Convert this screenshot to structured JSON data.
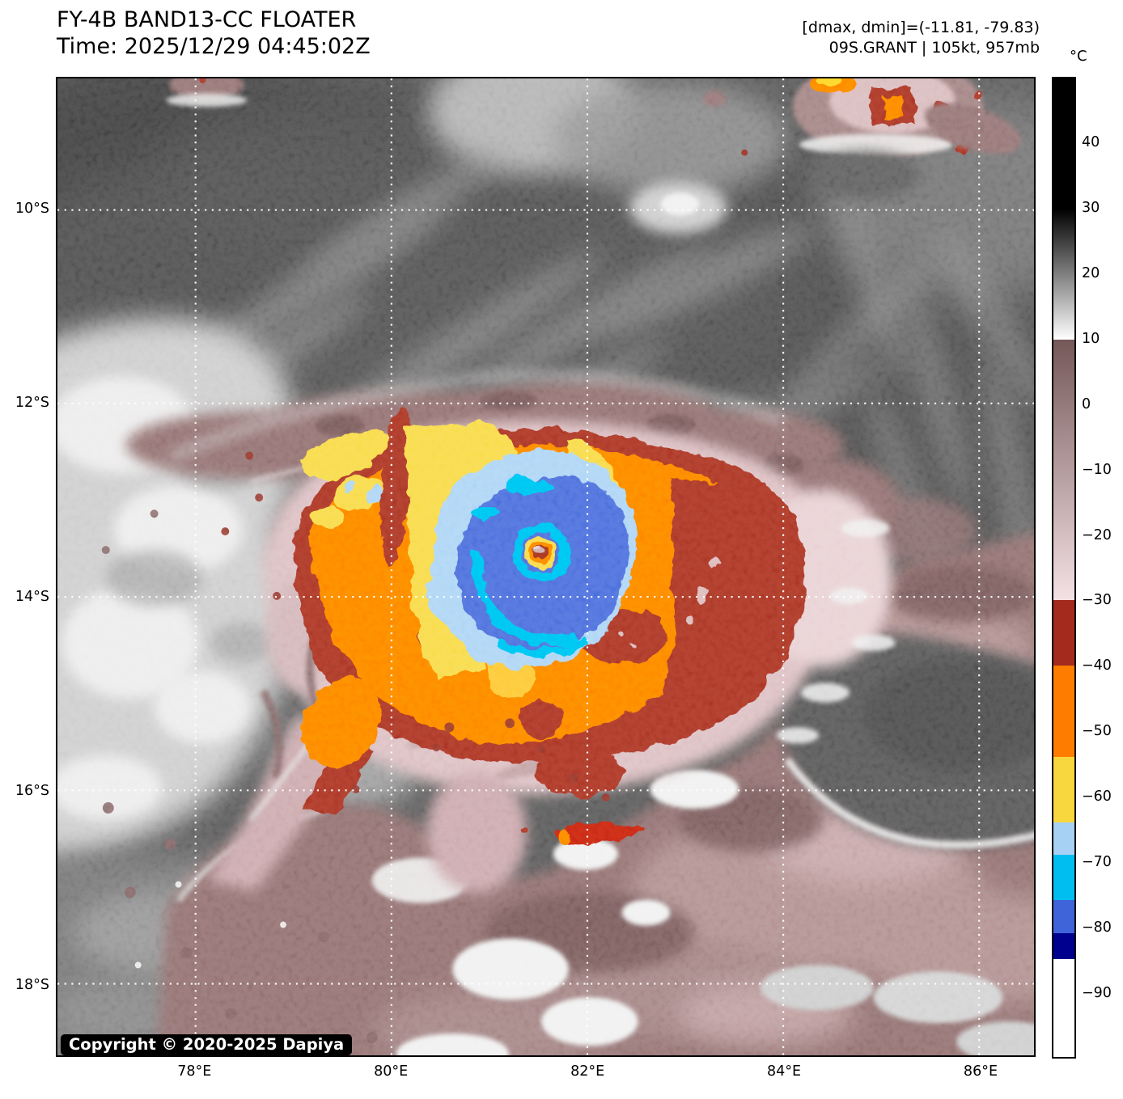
{
  "header": {
    "title_line1": "FY-4B BAND13-CC FLOATER",
    "title_line2": "Time: 2025/12/29 04:45:02Z",
    "dmax_dmin": "[dmax, dmin]=(-11.81, -79.83)",
    "storm_info": "09S.GRANT | 105kt, 957mb"
  },
  "map": {
    "copyright": "Copyright © 2020-2025 Dapiya",
    "lon_range": [
      76.59,
      86.56
    ],
    "lat_range": [
      8.64,
      18.74
    ],
    "x_ticks": [
      {
        "lon": 78,
        "label": "78°E"
      },
      {
        "lon": 80,
        "label": "80°E"
      },
      {
        "lon": 82,
        "label": "82°E"
      },
      {
        "lon": 84,
        "label": "84°E"
      },
      {
        "lon": 86,
        "label": "86°E"
      }
    ],
    "y_ticks": [
      {
        "lat": 10,
        "label": "10°S"
      },
      {
        "lat": 12,
        "label": "12°S"
      },
      {
        "lat": 14,
        "label": "14°S"
      },
      {
        "lat": 16,
        "label": "16°S"
      },
      {
        "lat": 18,
        "label": "18°S"
      }
    ],
    "grid_color": "#ffffff"
  },
  "colorbar": {
    "unit": "°C",
    "min": -100,
    "max": 50,
    "ticks": [
      {
        "value": 40,
        "label": "40"
      },
      {
        "value": 30,
        "label": "30"
      },
      {
        "value": 20,
        "label": "20"
      },
      {
        "value": 10,
        "label": "10"
      },
      {
        "value": 0,
        "label": "0"
      },
      {
        "value": -10,
        "label": "−10"
      },
      {
        "value": -20,
        "label": "−20"
      },
      {
        "value": -30,
        "label": "−30"
      },
      {
        "value": -40,
        "label": "−40"
      },
      {
        "value": -50,
        "label": "−50"
      },
      {
        "value": -60,
        "label": "−60"
      },
      {
        "value": -70,
        "label": "−70"
      },
      {
        "value": -80,
        "label": "−80"
      },
      {
        "value": -90,
        "label": "−90"
      }
    ],
    "segments": [
      {
        "from": 50,
        "to": 30,
        "color": "#000000"
      },
      {
        "from": 30,
        "to": 10,
        "gradient": [
          "#000000",
          "#ffffff"
        ]
      },
      {
        "from": 10,
        "to": -30,
        "gradient": [
          "#755858",
          "#f4e1e4"
        ]
      },
      {
        "from": -30,
        "to": -40,
        "color": "#a42a1e"
      },
      {
        "from": -40,
        "to": -54,
        "color": "#fe7d00"
      },
      {
        "from": -54,
        "to": -64,
        "color": "#f8d73e"
      },
      {
        "from": -64,
        "to": -69,
        "color": "#a6d1f4"
      },
      {
        "from": -69,
        "to": -76,
        "color": "#00bef0"
      },
      {
        "from": -76,
        "to": -81,
        "color": "#3f63d9"
      },
      {
        "from": -81,
        "to": -85,
        "color": "#00008f"
      },
      {
        "from": -85,
        "to": -100,
        "color": "#ffffff"
      }
    ]
  },
  "palette": {
    "bg0": "#4f4f4f",
    "gdark": "#3a3a3a",
    "gmid": "#8f8f8f",
    "glight": "#c9c9c9",
    "gwhite": "#efefef",
    "mauve": "#8a6666",
    "mauveDark": "#6d4e4e",
    "mauveLight": "#ab8888",
    "pink": "#d9babd",
    "pinkPale": "#e6cdd0",
    "red": "#a42a1e",
    "redStreak": "#c41a10",
    "orange": "#fe7d00",
    "yellow": "#f8d73e",
    "lblue": "#a6d1f4",
    "cyan": "#00bef0",
    "rblue": "#3f63d9",
    "navy": "#00008f",
    "eyePink": "#c9a4a4",
    "grid": "#ffffff"
  },
  "chart_data": {
    "type": "heatmap",
    "title": "FY-4B BAND13-CC FLOATER",
    "time_label": "2025/12/29 04:45:02Z",
    "storm": {
      "designation": "09S",
      "name": "GRANT",
      "intensity_kt": 105,
      "pressure_mb": 957
    },
    "dmax_c": -11.81,
    "dmin_c": -79.83,
    "x_axis": {
      "unit": "°E",
      "tick_values": [
        78,
        80,
        82,
        84,
        86
      ],
      "range": [
        76.59,
        86.56
      ]
    },
    "y_axis": {
      "unit": "°S",
      "tick_values": [
        10,
        12,
        14,
        16,
        18
      ],
      "range": [
        8.64,
        18.74
      ]
    },
    "colorbar_scale": {
      "unit": "°C",
      "range": [
        -100,
        50
      ],
      "tick_values": [
        40,
        30,
        20,
        10,
        0,
        -10,
        -20,
        -30,
        -40,
        -50,
        -60,
        -70,
        -80,
        -90
      ]
    },
    "eye_position": {
      "lon_e": 81.5,
      "lat_s": 13.5
    },
    "legend_position": "right",
    "grid": true
  }
}
